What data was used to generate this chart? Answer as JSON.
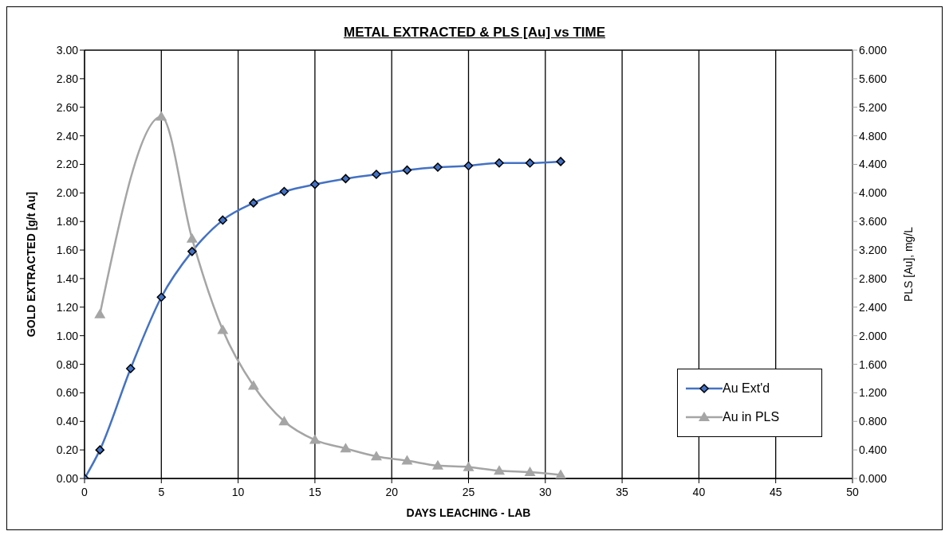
{
  "chart_data": {
    "type": "line",
    "title": "METAL EXTRACTED & PLS [Au] vs TIME",
    "xlabel": "DAYS LEACHING - LAB",
    "ylabel": "GOLD EXTRACTED [g/t Au]",
    "y2label": "PLS [Au], mg/L",
    "x": [
      0,
      1,
      3,
      5,
      7,
      9,
      11,
      13,
      15,
      17,
      19,
      21,
      23,
      25,
      27,
      29,
      31
    ],
    "series": [
      {
        "name": "Au Ext'd",
        "color": "#4472c4",
        "marker": "diamond",
        "values": [
          0,
          0.2,
          0.77,
          1.27,
          1.59,
          1.81,
          1.93,
          2.01,
          2.06,
          2.1,
          2.13,
          2.16,
          2.18,
          2.19,
          2.21,
          2.21,
          2.22
        ]
      },
      {
        "name": "Au in PLS",
        "color": "#a5a5a5",
        "marker": "triangle",
        "axis": "y2",
        "values": [
          null,
          2.3,
          null,
          5.07,
          3.36,
          2.08,
          1.3,
          0.8,
          0.54,
          0.42,
          0.31,
          0.25,
          0.18,
          0.16,
          0.11,
          0.09,
          0.05
        ]
      }
    ],
    "xlim": [
      0,
      50
    ],
    "xticks": [
      0,
      5,
      10,
      15,
      20,
      25,
      30,
      35,
      40,
      45,
      50
    ],
    "ylim": [
      0,
      3
    ],
    "yticks": [
      {
        "value": 0,
        "label": "0.00"
      },
      {
        "value": 0.2,
        "label": "0.20"
      },
      {
        "value": 0.4,
        "label": "0.40"
      },
      {
        "value": 0.6,
        "label": "0.60"
      },
      {
        "value": 0.8,
        "label": "0.80"
      },
      {
        "value": 1,
        "label": "1.00"
      },
      {
        "value": 1.2,
        "label": "1.20"
      },
      {
        "value": 1.4,
        "label": "1.40"
      },
      {
        "value": 1.6,
        "label": "1.60"
      },
      {
        "value": 1.8,
        "label": "1.80"
      },
      {
        "value": 2,
        "label": "2.00"
      },
      {
        "value": 2.2,
        "label": "2.20"
      },
      {
        "value": 2.4,
        "label": "2.40"
      },
      {
        "value": 2.6,
        "label": "2.60"
      },
      {
        "value": 2.8,
        "label": "2.80"
      },
      {
        "value": 3,
        "label": "3.00"
      }
    ],
    "y2lim": [
      0,
      6
    ],
    "y2ticks": [
      {
        "value": 0,
        "label": "0.000"
      },
      {
        "value": 0.4,
        "label": "0.400"
      },
      {
        "value": 0.8,
        "label": "0.800"
      },
      {
        "value": 1.2,
        "label": "1.200"
      },
      {
        "value": 1.6,
        "label": "1.600"
      },
      {
        "value": 2,
        "label": "2.000"
      },
      {
        "value": 2.4,
        "label": "2.400"
      },
      {
        "value": 2.8,
        "label": "2.800"
      },
      {
        "value": 3.2,
        "label": "3.200"
      },
      {
        "value": 3.6,
        "label": "3.600"
      },
      {
        "value": 4,
        "label": "4.000"
      },
      {
        "value": 4.4,
        "label": "4.400"
      },
      {
        "value": 4.8,
        "label": "4.800"
      },
      {
        "value": 5.2,
        "label": "5.200"
      },
      {
        "value": 5.6,
        "label": "5.600"
      },
      {
        "value": 6,
        "label": "6.000"
      }
    ],
    "grid": true,
    "legend": "right",
    "line_style": "solid"
  }
}
